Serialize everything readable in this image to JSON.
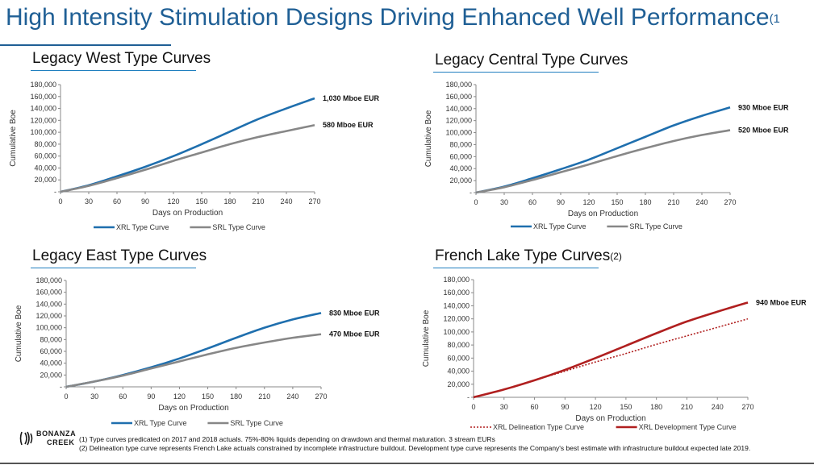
{
  "page": {
    "title": "High Intensity Stimulation Designs Driving Enhanced Well Performance",
    "title_sup": "(1",
    "logo_line1": "BONANZA",
    "logo_line2": "CREEK",
    "footnote1": "(1) Type curves predicated on 2017 and 2018 actuals. 75%-80% liquids depending on drawdown and thermal maturation. 3 stream EURs",
    "footnote2": "(2) Delineation type curve represents French Lake actuals constrained by incomplete infrastructure buildout. Development type curve represents the Company's best estimate with infrastructure buildout expected late 2019."
  },
  "colors": {
    "xrl": "#1f6fae",
    "srl": "#878787",
    "french": "#b01f1f",
    "title": "#1f5f95"
  },
  "chart_data": [
    {
      "type": "line",
      "title": "Legacy West Type Curves",
      "title_sup": "",
      "xlabel": "Days on Production",
      "ylabel": "Cumulative Boe",
      "xlim": [
        0,
        270
      ],
      "ylim": [
        0,
        180000
      ],
      "xticks": [
        "0",
        "30",
        "60",
        "90",
        "120",
        "150",
        "180",
        "210",
        "240",
        "270"
      ],
      "yticks": [
        "-",
        "20,000",
        "40,000",
        "60,000",
        "80,000",
        "100,000",
        "120,000",
        "140,000",
        "160,000",
        "180,000"
      ],
      "legend_position": "bottom",
      "series": [
        {
          "name": "XRL Type Curve",
          "color": "#1f6fae",
          "dash": "",
          "end_label": "1,030 Mboe EUR",
          "x": [
            0,
            30,
            60,
            90,
            120,
            150,
            180,
            210,
            240,
            270
          ],
          "y": [
            0,
            11000,
            26000,
            42000,
            60000,
            80000,
            101000,
            122000,
            140000,
            157000
          ]
        },
        {
          "name": "SRL Type Curve",
          "color": "#878787",
          "dash": "",
          "end_label": "580 Mboe EUR",
          "x": [
            0,
            30,
            60,
            90,
            120,
            150,
            180,
            210,
            240,
            270
          ],
          "y": [
            0,
            10000,
            23000,
            37000,
            52000,
            66000,
            80000,
            92000,
            102000,
            112000
          ]
        }
      ]
    },
    {
      "type": "line",
      "title": "Legacy Central Type Curves",
      "title_sup": "",
      "xlabel": "Days on Production",
      "ylabel": "Cumulative Boe",
      "xlim": [
        0,
        270
      ],
      "ylim": [
        0,
        180000
      ],
      "xticks": [
        "0",
        "30",
        "60",
        "90",
        "120",
        "150",
        "180",
        "210",
        "240",
        "270"
      ],
      "yticks": [
        "-",
        "20,000",
        "40,000",
        "60,000",
        "80,000",
        "100,000",
        "120,000",
        "140,000",
        "160,000",
        "180,000"
      ],
      "legend_position": "bottom",
      "series": [
        {
          "name": "XRL Type Curve",
          "color": "#1f6fae",
          "dash": "",
          "end_label": "930 Mboe EUR",
          "x": [
            0,
            30,
            60,
            90,
            120,
            150,
            180,
            210,
            240,
            270
          ],
          "y": [
            0,
            10000,
            24000,
            39000,
            55000,
            74000,
            93000,
            112000,
            128000,
            142000
          ]
        },
        {
          "name": "SRL Type Curve",
          "color": "#878787",
          "dash": "",
          "end_label": "520 Mboe EUR",
          "x": [
            0,
            30,
            60,
            90,
            120,
            150,
            180,
            210,
            240,
            270
          ],
          "y": [
            0,
            9000,
            21000,
            34000,
            47000,
            61000,
            74000,
            86000,
            96000,
            104000
          ]
        }
      ]
    },
    {
      "type": "line",
      "title": "Legacy East Type Curves",
      "title_sup": "",
      "xlabel": "Days on Production",
      "ylabel": "Cumulative Boe",
      "xlim": [
        0,
        270
      ],
      "ylim": [
        0,
        180000
      ],
      "xticks": [
        "0",
        "30",
        "60",
        "90",
        "120",
        "150",
        "180",
        "210",
        "240",
        "270"
      ],
      "yticks": [
        "-",
        "20,000",
        "40,000",
        "60,000",
        "80,000",
        "100,000",
        "120,000",
        "140,000",
        "160,000",
        "180,000"
      ],
      "legend_position": "bottom",
      "series": [
        {
          "name": "XRL Type Curve",
          "color": "#1f6fae",
          "dash": "",
          "end_label": "830 Mboe EUR",
          "x": [
            0,
            30,
            60,
            90,
            120,
            150,
            180,
            210,
            240,
            270
          ],
          "y": [
            0,
            9000,
            20000,
            33000,
            48000,
            65000,
            83000,
            100000,
            114000,
            125000
          ]
        },
        {
          "name": "SRL Type Curve",
          "color": "#878787",
          "dash": "",
          "end_label": "470 Mboe EUR",
          "x": [
            0,
            30,
            60,
            90,
            120,
            150,
            180,
            210,
            240,
            270
          ],
          "y": [
            0,
            9000,
            19000,
            31000,
            43000,
            55000,
            66000,
            75000,
            83000,
            89000
          ]
        }
      ]
    },
    {
      "type": "line",
      "title": "French Lake Type Curves",
      "title_sup": "(2)",
      "xlabel": "Days on Production",
      "ylabel": "Cumulative Boe",
      "xlim": [
        0,
        270
      ],
      "ylim": [
        0,
        180000
      ],
      "xticks": [
        "0",
        "30",
        "60",
        "90",
        "120",
        "150",
        "180",
        "210",
        "240",
        "270"
      ],
      "yticks": [
        "-",
        "20,000",
        "40,000",
        "60,000",
        "80,000",
        "100,000",
        "120,000",
        "140,000",
        "160,000",
        "180,000"
      ],
      "legend_position": "bottom",
      "series": [
        {
          "name": "XRL Delineation Type Curve",
          "color": "#b01f1f",
          "dash": "2,2",
          "end_label": "",
          "x": [
            0,
            30,
            60,
            90,
            120,
            150,
            180,
            210,
            240,
            270
          ],
          "y": [
            0,
            12000,
            26000,
            40000,
            54000,
            67000,
            81000,
            94000,
            107000,
            120000
          ]
        },
        {
          "name": "XRL Development Type Curve",
          "color": "#b01f1f",
          "dash": "",
          "end_label": "940 Mboe EUR",
          "x": [
            0,
            30,
            60,
            90,
            120,
            150,
            180,
            210,
            240,
            270
          ],
          "y": [
            0,
            12000,
            26000,
            42000,
            60000,
            79000,
            98000,
            116000,
            131000,
            145000
          ]
        }
      ]
    }
  ]
}
